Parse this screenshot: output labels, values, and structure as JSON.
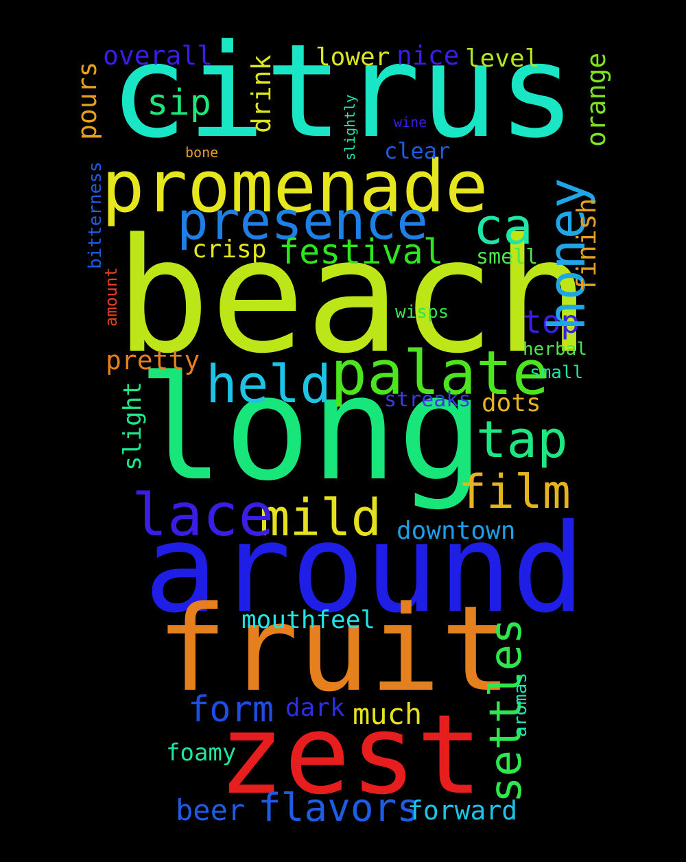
{
  "words": [
    {
      "text": "citrus",
      "color": "#19e6c4"
    },
    {
      "text": "beach",
      "color": "#bde619"
    },
    {
      "text": "long",
      "color": "#19e67a"
    },
    {
      "text": "around",
      "color": "#1e1ee6"
    },
    {
      "text": "fruit",
      "color": "#e6801e"
    },
    {
      "text": "zest",
      "color": "#e61e1e"
    },
    {
      "text": "promenade",
      "color": "#e6e61e"
    },
    {
      "text": "presence",
      "color": "#1e80e6"
    },
    {
      "text": "palate",
      "color": "#4de61e"
    },
    {
      "text": "held",
      "color": "#1ec4e6"
    },
    {
      "text": "honey",
      "color": "#1ea6e6"
    },
    {
      "text": "ca",
      "color": "#1ee6a6"
    },
    {
      "text": "tap",
      "color": "#1ee680"
    },
    {
      "text": "film",
      "color": "#e6b41e"
    },
    {
      "text": "mild",
      "color": "#e6e01e"
    },
    {
      "text": "lace",
      "color": "#3a1ee6"
    },
    {
      "text": "settles",
      "color": "#2ee64d"
    },
    {
      "text": "festival",
      "color": "#2ee61e"
    },
    {
      "text": "form",
      "color": "#1e4de6"
    },
    {
      "text": "flavors",
      "color": "#1e5ce6"
    },
    {
      "text": "sip",
      "color": "#1ee67a"
    },
    {
      "text": "top",
      "color": "#3a1ee6"
    },
    {
      "text": "overall",
      "color": "#3a1ee6"
    },
    {
      "text": "nice",
      "color": "#3a1ee6"
    },
    {
      "text": "lower",
      "color": "#dce61e"
    },
    {
      "text": "level",
      "color": "#b4e61e"
    },
    {
      "text": "drink",
      "color": "#dce61e"
    },
    {
      "text": "pours",
      "color": "#e6a01e"
    },
    {
      "text": "orange",
      "color": "#7ae61e"
    },
    {
      "text": "finish",
      "color": "#e6a01e"
    },
    {
      "text": "crisp",
      "color": "#e6e61e"
    },
    {
      "text": "smell",
      "color": "#4de64d"
    },
    {
      "text": "pretty",
      "color": "#e6801e"
    },
    {
      "text": "slight",
      "color": "#1ee68a"
    },
    {
      "text": "dots",
      "color": "#e6b41e"
    },
    {
      "text": "streaks",
      "color": "#3a3ae6"
    },
    {
      "text": "downtown",
      "color": "#1e9ee6"
    },
    {
      "text": "mouthfeel",
      "color": "#1ee6e6"
    },
    {
      "text": "dark",
      "color": "#2e2ee6"
    },
    {
      "text": "much",
      "color": "#e6e01e"
    },
    {
      "text": "beer",
      "color": "#1e5ce6"
    },
    {
      "text": "forward",
      "color": "#1ec4e6"
    },
    {
      "text": "foamy",
      "color": "#1ee69e"
    },
    {
      "text": "aromas",
      "color": "#1ee6b4"
    },
    {
      "text": "clear",
      "color": "#1e5ce6"
    },
    {
      "text": "wisps",
      "color": "#2ee64d"
    },
    {
      "text": "herbal",
      "color": "#4de64d"
    },
    {
      "text": "small",
      "color": "#1ee6a6"
    },
    {
      "text": "bitterness",
      "color": "#1e5ce6"
    },
    {
      "text": "amount",
      "color": "#e6401e"
    },
    {
      "text": "bone",
      "color": "#e6a01e"
    },
    {
      "text": "wine",
      "color": "#3a1ee6"
    },
    {
      "text": "slightly",
      "color": "#1ee6b4"
    }
  ]
}
